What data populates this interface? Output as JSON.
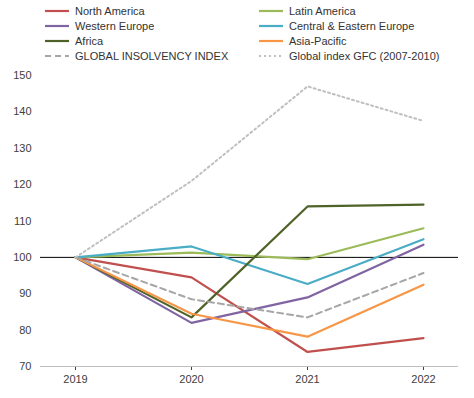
{
  "chart_data": {
    "type": "line",
    "categories": [
      "2019",
      "2020",
      "2021",
      "2022"
    ],
    "series": [
      {
        "name": "North America",
        "color": "#c0504d",
        "line_style": "solid",
        "values": [
          100,
          94.5,
          74,
          77.8
        ]
      },
      {
        "name": "Latin America",
        "color": "#9bbb59",
        "line_style": "solid",
        "values": [
          100,
          101.3,
          99.5,
          108
        ]
      },
      {
        "name": "Western Europe",
        "color": "#8064a2",
        "line_style": "solid",
        "values": [
          100,
          82,
          89,
          103.5
        ]
      },
      {
        "name": "Central & Eastern Europe",
        "color": "#4bacc6",
        "line_style": "solid",
        "values": [
          100,
          103,
          92.7,
          105
        ]
      },
      {
        "name": "Africa",
        "color": "#4f6228",
        "line_style": "solid",
        "values": [
          100,
          83.5,
          114,
          114.5
        ]
      },
      {
        "name": "Asia-Pacific",
        "color": "#f79646",
        "line_style": "solid",
        "values": [
          100,
          84.5,
          78.2,
          92.5
        ]
      },
      {
        "name": "GLOBAL INSOLVENCY INDEX",
        "color": "#a6a6a6",
        "line_style": "dashed",
        "values": [
          100,
          88.5,
          83.5,
          95.7
        ]
      },
      {
        "name": "Global index GFC (2007-2010)",
        "color": "#bfbfbf",
        "line_style": "dotted",
        "values": [
          100,
          121,
          147,
          137.5
        ]
      }
    ],
    "baseline": 100,
    "ylim": [
      70,
      150
    ],
    "yticks": [
      70,
      80,
      90,
      100,
      110,
      120,
      130,
      140,
      150
    ],
    "grid": false,
    "legend": "top"
  }
}
